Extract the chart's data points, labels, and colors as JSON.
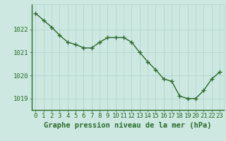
{
  "x": [
    0,
    1,
    2,
    3,
    4,
    5,
    6,
    7,
    8,
    9,
    10,
    11,
    12,
    13,
    14,
    15,
    16,
    17,
    18,
    19,
    20,
    21,
    22,
    23
  ],
  "y": [
    1022.7,
    1022.4,
    1022.1,
    1021.75,
    1021.45,
    1021.35,
    1021.2,
    1021.2,
    1021.45,
    1021.65,
    1021.65,
    1021.65,
    1021.45,
    1021.0,
    1020.6,
    1020.25,
    1019.85,
    1019.75,
    1019.1,
    1019.0,
    1019.0,
    1019.35,
    1019.85,
    1020.15
  ],
  "line_color": "#2d6a2d",
  "marker_color": "#2d6a2d",
  "bg_color": "#cce8e0",
  "grid_color": "#b0d0cc",
  "title": "Graphe pression niveau de la mer (hPa)",
  "ylim": [
    1018.5,
    1023.1
  ],
  "yticks": [
    1019,
    1020,
    1021,
    1022
  ],
  "xlim": [
    -0.5,
    23.5
  ],
  "xticks": [
    0,
    1,
    2,
    3,
    4,
    5,
    6,
    7,
    8,
    9,
    10,
    11,
    12,
    13,
    14,
    15,
    16,
    17,
    18,
    19,
    20,
    21,
    22,
    23
  ],
  "tick_label_color": "#2d6a2d",
  "xlabel_color": "#2d6a2d",
  "tick_fontsize": 6.5,
  "title_fontsize": 7.5,
  "linewidth": 1.0,
  "markersize": 4.5,
  "marker_linewidth": 1.0
}
